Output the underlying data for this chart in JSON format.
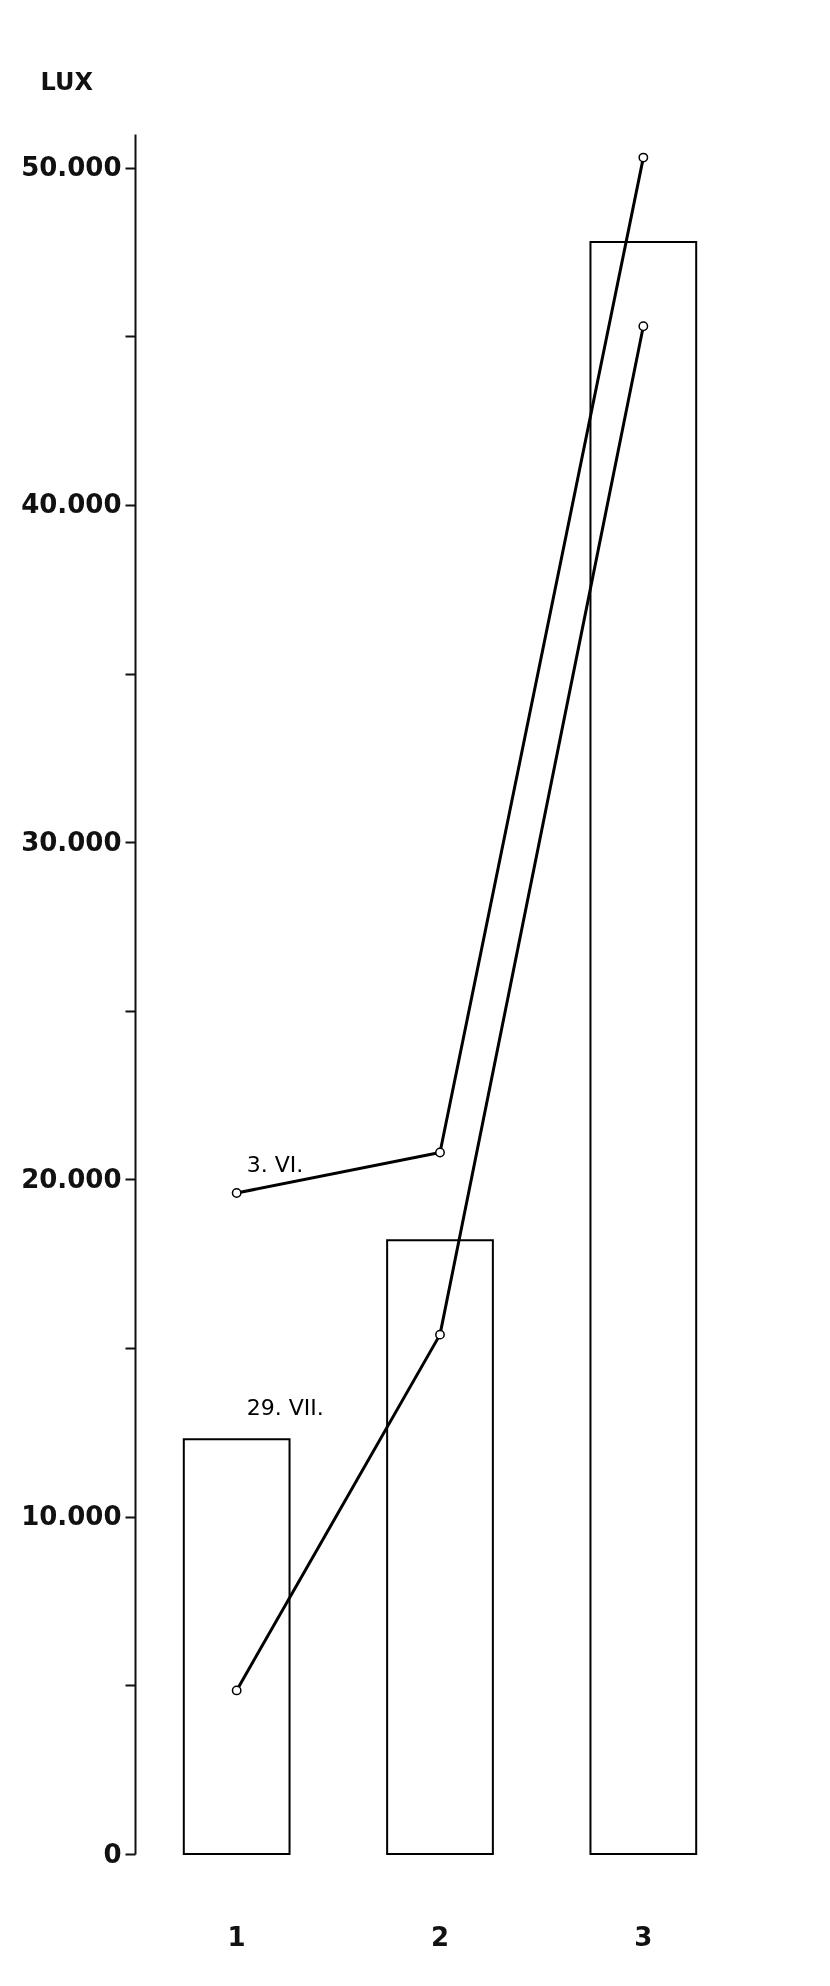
{
  "chart_data": {
    "type": "bar",
    "ylabel": "LUX",
    "categories": [
      "1",
      "2",
      "3"
    ],
    "series": [
      {
        "color": "#000000",
        "values": [
          12300,
          18200,
          47800
        ]
      },
      {
        "type": "line",
        "name": "3. VI.",
        "color": "#000000",
        "values": [
          19600,
          20800,
          50300
        ]
      },
      {
        "type": "line",
        "name": "29. VII.",
        "color": "#000000",
        "values": [
          4850,
          15400,
          45300
        ]
      }
    ],
    "ylim": [
      0,
      51000
    ],
    "yticks": [
      {
        "value": 0,
        "label": "0"
      },
      {
        "value": 5000,
        "label": null
      },
      {
        "value": 10000,
        "label": "10.000"
      },
      {
        "value": 15000,
        "label": null
      },
      {
        "value": 20000,
        "label": "20.000"
      },
      {
        "value": 25000,
        "label": null
      },
      {
        "value": 30000,
        "label": "30.000"
      },
      {
        "value": 35000,
        "label": null
      },
      {
        "value": 40000,
        "label": "40.000"
      },
      {
        "value": 45000,
        "label": null
      },
      {
        "value": 50000,
        "label": "50.000"
      }
    ],
    "marker": "circle",
    "grid": false
  }
}
